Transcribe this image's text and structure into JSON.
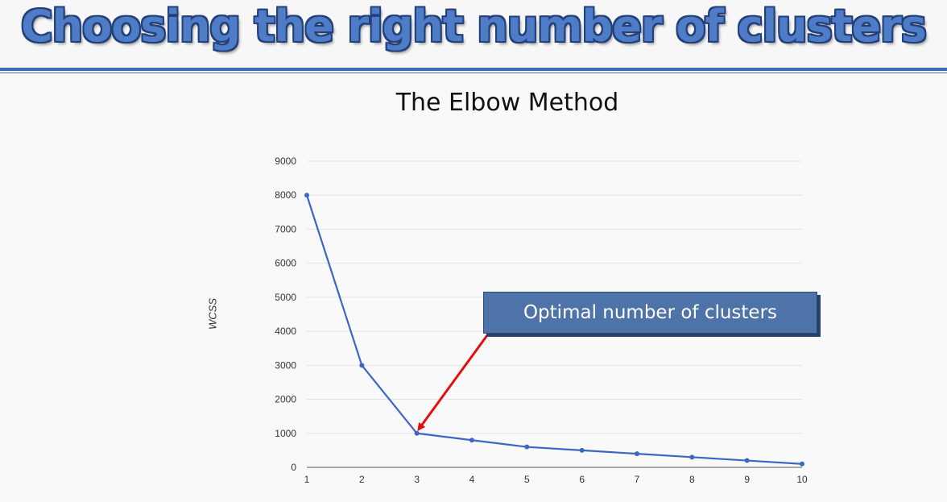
{
  "slide": {
    "title": "Choosing the right number of clusters"
  },
  "colors": {
    "title_fill": "#4f7cc6",
    "title_outline": "#23407a",
    "rule": "#3e6db3",
    "line": "#3d66c4",
    "callout_fill": "#4e73a9",
    "arrow": "#e01010"
  },
  "annotation": {
    "text": "Optimal number of clusters",
    "points_to_x": 3
  },
  "chart_data": {
    "type": "line",
    "title": "The Elbow Method",
    "xlabel": "",
    "ylabel": "WCSS",
    "x": [
      1,
      2,
      3,
      4,
      5,
      6,
      7,
      8,
      9,
      10
    ],
    "series": [
      {
        "values": [
          8000,
          3000,
          1000,
          800,
          600,
          500,
          400,
          300,
          200,
          100
        ]
      }
    ],
    "xlim": [
      1,
      10
    ],
    "ylim": [
      0,
      9000
    ],
    "yticks": [
      0,
      1000,
      2000,
      3000,
      4000,
      5000,
      6000,
      7000,
      8000,
      9000
    ],
    "xticks": [
      1,
      2,
      3,
      4,
      5,
      6,
      7,
      8,
      9,
      10
    ],
    "grid": "horizontal",
    "legend": "none"
  }
}
